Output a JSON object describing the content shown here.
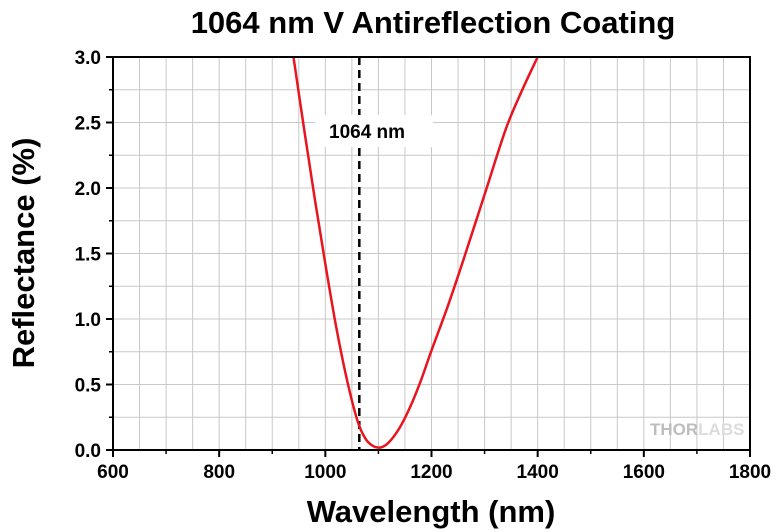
{
  "chart_data": {
    "type": "line",
    "title": "1064 nm V Antireflection Coating",
    "xlabel": "Wavelength (nm)",
    "ylabel": "Reflectance (%)",
    "xlim": [
      600,
      1800
    ],
    "ylim": [
      0,
      3.0
    ],
    "x_ticks": [
      600,
      800,
      1000,
      1200,
      1400,
      1600,
      1800
    ],
    "x_tick_labels": [
      "600",
      "800",
      "1000",
      "1200",
      "1400",
      "1600",
      "1800"
    ],
    "y_ticks": [
      0,
      0.5,
      1.0,
      1.5,
      2.0,
      2.5,
      3.0
    ],
    "y_tick_labels": [
      "0.0",
      "0.5",
      "1.0",
      "1.5",
      "2.0",
      "2.5",
      "3.0"
    ],
    "grid": true,
    "legend": "none",
    "line_color": "#e8141e",
    "series": [
      {
        "x": [
          940,
          960,
          980,
          1000,
          1020,
          1040,
          1060,
          1075,
          1090,
          1105,
          1120,
          1140,
          1160,
          1180,
          1200,
          1230,
          1260,
          1300,
          1340,
          1370,
          1400
        ],
        "y": [
          3.0,
          2.45,
          1.92,
          1.42,
          0.95,
          0.55,
          0.23,
          0.09,
          0.03,
          0.02,
          0.06,
          0.17,
          0.33,
          0.53,
          0.76,
          1.09,
          1.45,
          1.95,
          2.45,
          2.74,
          3.0
        ]
      }
    ],
    "annotation": {
      "x": 1064,
      "label": "1064 nm",
      "style": "dashed-vertical-line"
    },
    "watermark": {
      "parts": [
        "THOR",
        "LABS"
      ],
      "colors": [
        "#bdbdbd",
        "#dcdcdc"
      ]
    }
  }
}
